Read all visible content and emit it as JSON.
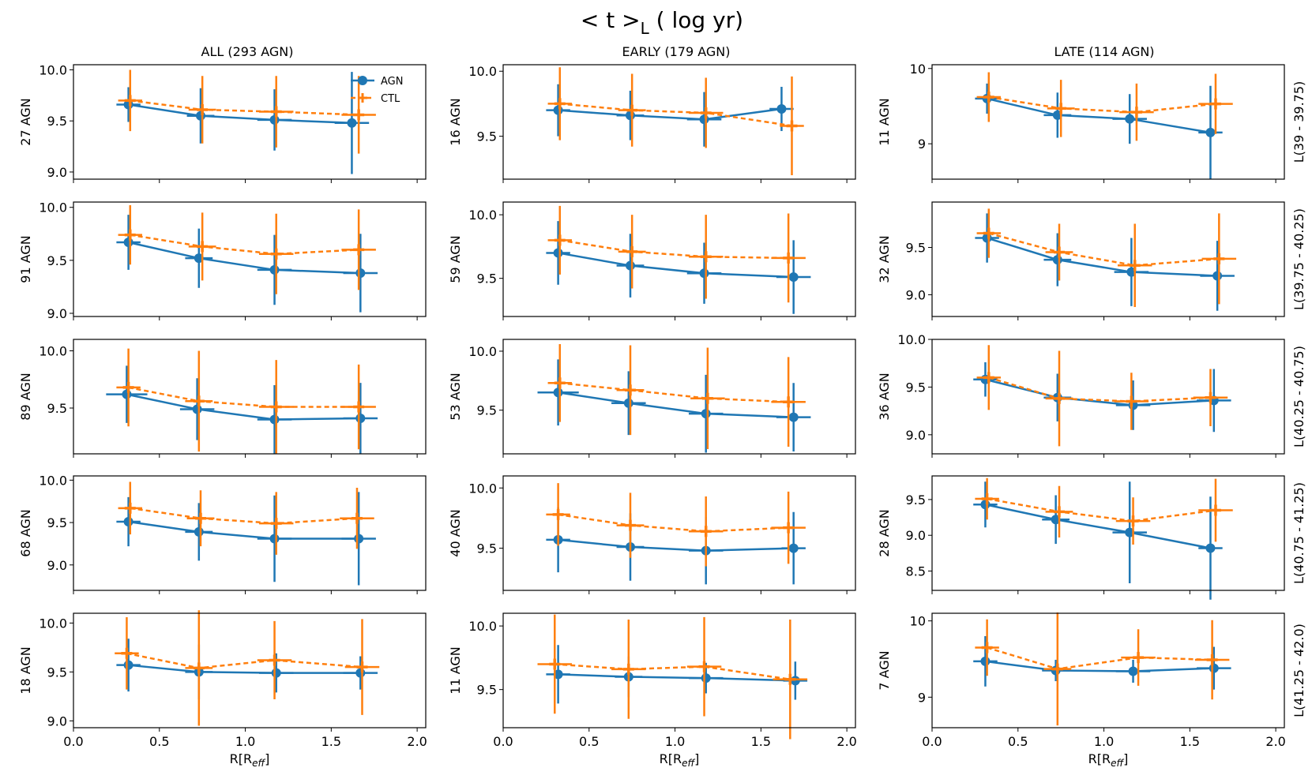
{
  "figure": {
    "title_main": "< t >",
    "title_sub": "L",
    "title_rest": " ( log yr)",
    "colors": {
      "agn": "#1f77b4",
      "ctl": "#ff7f0e",
      "row_label": "#0000ff"
    }
  },
  "columns": [
    {
      "title": "ALL (293 AGN)"
    },
    {
      "title": "EARLY (179 AGN)"
    },
    {
      "title": "LATE (114 AGN)"
    }
  ],
  "rows": [
    {
      "label": "L(39 - 39.75)"
    },
    {
      "label": "L(39.75 - 40.25)"
    },
    {
      "label": "L(40.25 - 40.75)"
    },
    {
      "label": "L(40.75 - 41.25)"
    },
    {
      "label": "L(41.25 - 42.0)"
    }
  ],
  "legend": [
    {
      "name": "AGN",
      "marker": "circle",
      "line": "solid"
    },
    {
      "name": "CTL",
      "marker": "plus",
      "line": "dashed"
    }
  ],
  "chart_data": {
    "type": "line",
    "xlabel_main": "R[R",
    "xlabel_sub": "eff",
    "xlabel_end": "]",
    "xlim": [
      0.0,
      2.05
    ],
    "xticks": [
      "0.0",
      "0.5",
      "1.0",
      "1.5",
      "2.0"
    ],
    "panels": [
      {
        "row": 0,
        "col": 0,
        "ylabel": "27 AGN",
        "ylim": [
          8.93,
          10.05
        ],
        "yticks": [
          "9.0",
          "9.5",
          "10.0"
        ],
        "legend": true,
        "agn": {
          "x": [
            0.32,
            0.74,
            1.17,
            1.62
          ],
          "y": [
            9.66,
            9.55,
            9.51,
            9.48
          ],
          "yerr": [
            0.17,
            0.27,
            0.3,
            0.5
          ],
          "xerr": [
            0.07,
            0.08,
            0.1,
            0.1
          ]
        },
        "ctl": {
          "x": [
            0.33,
            0.75,
            1.18,
            1.66
          ],
          "y": [
            9.7,
            9.61,
            9.59,
            9.56
          ],
          "yerr": [
            0.3,
            0.33,
            0.35,
            0.38
          ],
          "xerr": [
            0.07,
            0.08,
            0.1,
            0.1
          ]
        }
      },
      {
        "row": 0,
        "col": 1,
        "ylabel": "16 AGN",
        "ylim": [
          9.17,
          10.05
        ],
        "yticks": [
          "9.5",
          "10.0"
        ],
        "agn": {
          "x": [
            0.32,
            0.74,
            1.17,
            1.62
          ],
          "y": [
            9.7,
            9.66,
            9.63,
            9.71
          ],
          "yerr": [
            0.2,
            0.19,
            0.21,
            0.17
          ],
          "xerr": [
            0.07,
            0.08,
            0.1,
            0.07
          ]
        },
        "ctl": {
          "x": [
            0.33,
            0.75,
            1.18,
            1.68
          ],
          "y": [
            9.75,
            9.7,
            9.68,
            9.58
          ],
          "yerr": [
            0.28,
            0.28,
            0.27,
            0.38
          ],
          "xerr": [
            0.07,
            0.08,
            0.1,
            0.07
          ]
        }
      },
      {
        "row": 0,
        "col": 2,
        "ylabel": "11 AGN",
        "ylim": [
          8.53,
          10.05
        ],
        "yticks": [
          "9",
          "10"
        ],
        "agn": {
          "x": [
            0.32,
            0.73,
            1.15,
            1.62
          ],
          "y": [
            9.6,
            9.38,
            9.33,
            9.15
          ],
          "yerr": [
            0.2,
            0.3,
            0.33,
            0.62
          ],
          "xerr": [
            0.07,
            0.08,
            0.1,
            0.07
          ]
        },
        "ctl": {
          "x": [
            0.33,
            0.75,
            1.19,
            1.65
          ],
          "y": [
            9.62,
            9.47,
            9.42,
            9.53
          ],
          "yerr": [
            0.33,
            0.38,
            0.38,
            0.4
          ],
          "xerr": [
            0.07,
            0.08,
            0.1,
            0.1
          ]
        }
      },
      {
        "row": 1,
        "col": 0,
        "ylabel": "91 AGN",
        "ylim": [
          8.97,
          10.05
        ],
        "yticks": [
          "9.0",
          "9.5",
          "10.0"
        ],
        "agn": {
          "x": [
            0.32,
            0.73,
            1.17,
            1.67
          ],
          "y": [
            9.67,
            9.52,
            9.41,
            9.38
          ],
          "yerr": [
            0.26,
            0.28,
            0.33,
            0.37
          ],
          "xerr": [
            0.07,
            0.08,
            0.1,
            0.1
          ]
        },
        "ctl": {
          "x": [
            0.33,
            0.75,
            1.18,
            1.66
          ],
          "y": [
            9.74,
            9.63,
            9.56,
            9.6
          ],
          "yerr": [
            0.28,
            0.32,
            0.38,
            0.38
          ],
          "xerr": [
            0.07,
            0.08,
            0.1,
            0.1
          ]
        }
      },
      {
        "row": 1,
        "col": 1,
        "ylabel": "59 AGN",
        "ylim": [
          9.2,
          10.1
        ],
        "yticks": [
          "9.5",
          "10.0"
        ],
        "agn": {
          "x": [
            0.32,
            0.74,
            1.17,
            1.69
          ],
          "y": [
            9.7,
            9.6,
            9.54,
            9.51
          ],
          "yerr": [
            0.25,
            0.25,
            0.24,
            0.29
          ],
          "xerr": [
            0.07,
            0.08,
            0.1,
            0.1
          ]
        },
        "ctl": {
          "x": [
            0.33,
            0.75,
            1.18,
            1.66
          ],
          "y": [
            9.8,
            9.71,
            9.67,
            9.66
          ],
          "yerr": [
            0.27,
            0.29,
            0.33,
            0.35
          ],
          "xerr": [
            0.07,
            0.08,
            0.1,
            0.1
          ]
        }
      },
      {
        "row": 1,
        "col": 2,
        "ylabel": "32 AGN",
        "ylim": [
          8.77,
          9.98
        ],
        "yticks": [
          "9.0",
          "9.5"
        ],
        "agn": {
          "x": [
            0.32,
            0.73,
            1.16,
            1.66
          ],
          "y": [
            9.6,
            9.37,
            9.24,
            9.2
          ],
          "yerr": [
            0.26,
            0.28,
            0.36,
            0.37
          ],
          "xerr": [
            0.07,
            0.08,
            0.1,
            0.1
          ]
        },
        "ctl": {
          "x": [
            0.33,
            0.74,
            1.18,
            1.67
          ],
          "y": [
            9.65,
            9.45,
            9.31,
            9.38
          ],
          "yerr": [
            0.26,
            0.3,
            0.44,
            0.48
          ],
          "xerr": [
            0.07,
            0.08,
            0.1,
            0.1
          ]
        }
      },
      {
        "row": 2,
        "col": 0,
        "ylabel": "89 AGN",
        "ylim": [
          9.1,
          10.1
        ],
        "yticks": [
          "9.5",
          "10.0"
        ],
        "agn": {
          "x": [
            0.31,
            0.72,
            1.17,
            1.67
          ],
          "y": [
            9.62,
            9.49,
            9.4,
            9.41
          ],
          "yerr": [
            0.25,
            0.27,
            0.3,
            0.31
          ],
          "xerr": [
            0.12,
            0.1,
            0.1,
            0.1
          ]
        },
        "ctl": {
          "x": [
            0.32,
            0.73,
            1.18,
            1.66
          ],
          "y": [
            9.68,
            9.56,
            9.51,
            9.51
          ],
          "yerr": [
            0.34,
            0.44,
            0.41,
            0.37
          ],
          "xerr": [
            0.07,
            0.08,
            0.1,
            0.1
          ]
        }
      },
      {
        "row": 2,
        "col": 1,
        "ylabel": "53 AGN",
        "ylim": [
          9.13,
          10.1
        ],
        "yticks": [
          "9.5",
          "10.0"
        ],
        "agn": {
          "x": [
            0.32,
            0.73,
            1.18,
            1.69
          ],
          "y": [
            9.65,
            9.56,
            9.47,
            9.44
          ],
          "yerr": [
            0.28,
            0.27,
            0.33,
            0.29
          ],
          "xerr": [
            0.12,
            0.1,
            0.1,
            0.1
          ]
        },
        "ctl": {
          "x": [
            0.33,
            0.74,
            1.19,
            1.66
          ],
          "y": [
            9.73,
            9.67,
            9.6,
            9.57
          ],
          "yerr": [
            0.33,
            0.38,
            0.43,
            0.38
          ],
          "xerr": [
            0.07,
            0.08,
            0.1,
            0.1
          ]
        }
      },
      {
        "row": 2,
        "col": 2,
        "ylabel": "36 AGN",
        "ylim": [
          8.8,
          10.0
        ],
        "yticks": [
          "9.0",
          "9.5",
          "10.0"
        ],
        "agn": {
          "x": [
            0.31,
            0.73,
            1.17,
            1.64
          ],
          "y": [
            9.58,
            9.39,
            9.31,
            9.36
          ],
          "yerr": [
            0.18,
            0.25,
            0.26,
            0.33
          ],
          "xerr": [
            0.07,
            0.08,
            0.1,
            0.1
          ]
        },
        "ctl": {
          "x": [
            0.33,
            0.74,
            1.16,
            1.62
          ],
          "y": [
            9.6,
            9.38,
            9.35,
            9.39
          ],
          "yerr": [
            0.34,
            0.5,
            0.3,
            0.3
          ],
          "xerr": [
            0.07,
            0.08,
            0.1,
            0.1
          ]
        }
      },
      {
        "row": 3,
        "col": 0,
        "ylabel": "68 AGN",
        "ylim": [
          8.7,
          10.05
        ],
        "yticks": [
          "9.0",
          "9.5",
          "10.0"
        ],
        "agn": {
          "x": [
            0.32,
            0.73,
            1.17,
            1.66
          ],
          "y": [
            9.51,
            9.39,
            9.31,
            9.31
          ],
          "yerr": [
            0.29,
            0.34,
            0.51,
            0.55
          ],
          "xerr": [
            0.07,
            0.08,
            0.1,
            0.1
          ]
        },
        "ctl": {
          "x": [
            0.33,
            0.74,
            1.18,
            1.65
          ],
          "y": [
            9.67,
            9.55,
            9.49,
            9.55
          ],
          "yerr": [
            0.31,
            0.33,
            0.37,
            0.36
          ],
          "xerr": [
            0.07,
            0.08,
            0.1,
            0.1
          ]
        }
      },
      {
        "row": 3,
        "col": 1,
        "ylabel": "40 AGN",
        "ylim": [
          9.15,
          10.1
        ],
        "yticks": [
          "9.5",
          "10.0"
        ],
        "agn": {
          "x": [
            0.32,
            0.74,
            1.18,
            1.69
          ],
          "y": [
            9.57,
            9.51,
            9.48,
            9.5
          ],
          "yerr": [
            0.27,
            0.28,
            0.28,
            0.3
          ],
          "xerr": [
            0.07,
            0.08,
            0.1,
            0.07
          ]
        },
        "ctl": {
          "x": [
            0.32,
            0.74,
            1.18,
            1.66
          ],
          "y": [
            9.78,
            9.69,
            9.64,
            9.67
          ],
          "yerr": [
            0.26,
            0.27,
            0.29,
            0.3
          ],
          "xerr": [
            0.07,
            0.08,
            0.1,
            0.1
          ]
        }
      },
      {
        "row": 3,
        "col": 2,
        "ylabel": "28 AGN",
        "ylim": [
          8.23,
          9.83
        ],
        "yticks": [
          "8.5",
          "9.0",
          "9.5"
        ],
        "agn": {
          "x": [
            0.31,
            0.72,
            1.15,
            1.62
          ],
          "y": [
            9.43,
            9.22,
            9.04,
            8.82
          ],
          "yerr": [
            0.32,
            0.34,
            0.71,
            0.72
          ],
          "xerr": [
            0.07,
            0.08,
            0.1,
            0.07
          ]
        },
        "ctl": {
          "x": [
            0.32,
            0.74,
            1.17,
            1.65
          ],
          "y": [
            9.51,
            9.33,
            9.2,
            9.35
          ],
          "yerr": [
            0.29,
            0.36,
            0.33,
            0.44
          ],
          "xerr": [
            0.07,
            0.08,
            0.1,
            0.1
          ]
        }
      },
      {
        "row": 4,
        "col": 0,
        "ylabel": "18 AGN",
        "ylim": [
          8.93,
          10.1
        ],
        "yticks": [
          "9.0",
          "9.5",
          "10.0"
        ],
        "agn": {
          "x": [
            0.32,
            0.73,
            1.18,
            1.67
          ],
          "y": [
            9.57,
            9.5,
            9.49,
            9.49
          ],
          "yerr": [
            0.27,
            0.28,
            0.2,
            0.17
          ],
          "xerr": [
            0.07,
            0.08,
            0.1,
            0.1
          ]
        },
        "ctl": {
          "x": [
            0.31,
            0.73,
            1.17,
            1.68
          ],
          "y": [
            9.69,
            9.54,
            9.62,
            9.55
          ],
          "yerr": [
            0.37,
            0.59,
            0.4,
            0.49
          ],
          "xerr": [
            0.07,
            0.08,
            0.1,
            0.1
          ]
        }
      },
      {
        "row": 4,
        "col": 1,
        "ylabel": "11 AGN",
        "ylim": [
          9.2,
          10.1
        ],
        "yticks": [
          "9.5",
          "10.0"
        ],
        "agn": {
          "x": [
            0.32,
            0.73,
            1.18,
            1.7
          ],
          "y": [
            9.62,
            9.6,
            9.59,
            9.57
          ],
          "yerr": [
            0.23,
            0.16,
            0.12,
            0.15
          ],
          "xerr": [
            0.07,
            0.08,
            0.1,
            0.07
          ]
        },
        "ctl": {
          "x": [
            0.3,
            0.73,
            1.17,
            1.67
          ],
          "y": [
            9.7,
            9.66,
            9.68,
            9.58
          ],
          "yerr": [
            0.39,
            0.39,
            0.39,
            0.47
          ],
          "xerr": [
            0.1,
            0.1,
            0.1,
            0.1
          ]
        }
      },
      {
        "row": 4,
        "col": 2,
        "ylabel": "7 AGN",
        "ylim": [
          8.6,
          10.1
        ],
        "yticks": [
          "9",
          "10"
        ],
        "agn": {
          "x": [
            0.31,
            0.72,
            1.17,
            1.64
          ],
          "y": [
            9.47,
            9.35,
            9.34,
            9.38
          ],
          "yerr": [
            0.33,
            0.14,
            0.15,
            0.28
          ],
          "xerr": [
            0.07,
            0.08,
            0.1,
            0.1
          ]
        },
        "ctl": {
          "x": [
            0.32,
            0.73,
            1.2,
            1.63
          ],
          "y": [
            9.65,
            9.37,
            9.52,
            9.49
          ],
          "yerr": [
            0.37,
            0.74,
            0.37,
            0.52
          ],
          "xerr": [
            0.07,
            0.08,
            0.1,
            0.1
          ]
        }
      }
    ]
  }
}
